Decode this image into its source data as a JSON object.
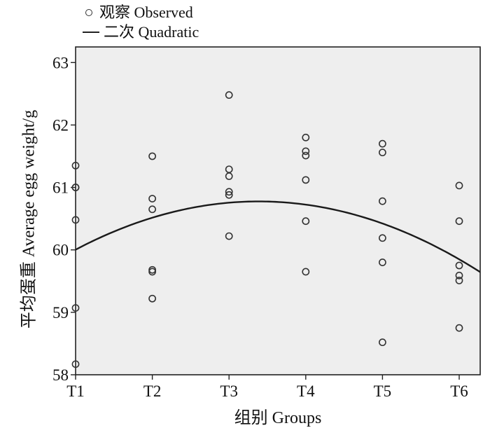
{
  "chart_data": {
    "type": "scatter",
    "xlabel": "组别  Groups",
    "ylabel": "平均蛋重  Average egg weight/g",
    "categories": [
      "T1",
      "T2",
      "T3",
      "T4",
      "T5",
      "T6"
    ],
    "ylim": [
      58,
      63.25
    ],
    "yticks": [
      58,
      59,
      60,
      61,
      62,
      63
    ],
    "grid": false,
    "legend_position": "top-left",
    "legend": [
      {
        "label": "观察  Observed",
        "marker": "circle"
      },
      {
        "label": "二次  Quadratic",
        "marker": "line"
      }
    ],
    "series": [
      {
        "name": "观察  Observed",
        "kind": "points",
        "points": [
          {
            "x": "T1",
            "y": 61.35
          },
          {
            "x": "T1",
            "y": 61.0
          },
          {
            "x": "T1",
            "y": 61.0
          },
          {
            "x": "T1",
            "y": 60.48
          },
          {
            "x": "T1",
            "y": 59.07
          },
          {
            "x": "T1",
            "y": 58.17
          },
          {
            "x": "T2",
            "y": 61.5
          },
          {
            "x": "T2",
            "y": 60.82
          },
          {
            "x": "T2",
            "y": 60.65
          },
          {
            "x": "T2",
            "y": 59.68
          },
          {
            "x": "T2",
            "y": 59.65
          },
          {
            "x": "T2",
            "y": 59.22
          },
          {
            "x": "T3",
            "y": 62.48
          },
          {
            "x": "T3",
            "y": 61.29
          },
          {
            "x": "T3",
            "y": 61.18
          },
          {
            "x": "T3",
            "y": 60.93
          },
          {
            "x": "T3",
            "y": 60.88
          },
          {
            "x": "T3",
            "y": 60.22
          },
          {
            "x": "T4",
            "y": 61.8
          },
          {
            "x": "T4",
            "y": 61.58
          },
          {
            "x": "T4",
            "y": 61.51
          },
          {
            "x": "T4",
            "y": 61.12
          },
          {
            "x": "T4",
            "y": 60.46
          },
          {
            "x": "T4",
            "y": 59.65
          },
          {
            "x": "T5",
            "y": 61.7
          },
          {
            "x": "T5",
            "y": 61.56
          },
          {
            "x": "T5",
            "y": 60.78
          },
          {
            "x": "T5",
            "y": 60.19
          },
          {
            "x": "T5",
            "y": 59.8
          },
          {
            "x": "T5",
            "y": 58.52
          },
          {
            "x": "T6",
            "y": 61.03
          },
          {
            "x": "T6",
            "y": 60.46
          },
          {
            "x": "T6",
            "y": 59.75
          },
          {
            "x": "T6",
            "y": 59.59
          },
          {
            "x": "T6",
            "y": 59.51
          },
          {
            "x": "T6",
            "y": 58.75
          }
        ]
      },
      {
        "name": "二次  Quadratic",
        "kind": "curve",
        "x_start": 1,
        "x_end": 6.3,
        "coefficients": {
          "a": -0.1357,
          "b": 0.919,
          "c": 59.22
        },
        "equation": "y = a·x² + b·x + c (x: T1=1 … T6=6)"
      }
    ]
  }
}
